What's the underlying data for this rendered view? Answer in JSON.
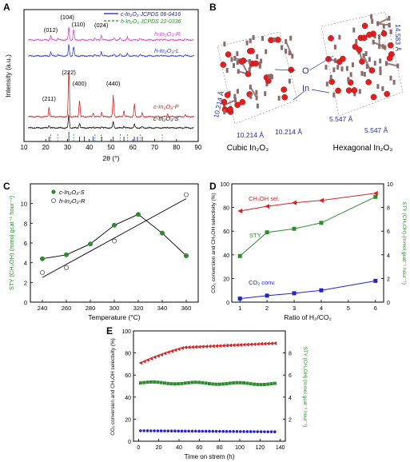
{
  "chart_data": [
    {
      "panel": "A",
      "type": "line",
      "xlabel": "2θ (°)",
      "ylabel": "Intensity (a.u.)",
      "xlim": [
        10,
        90
      ],
      "xticks": [
        "10",
        "20",
        "30",
        "40",
        "50",
        "60",
        "70",
        "80",
        "90"
      ],
      "legend": [
        {
          "name": "c-In2O3 JCPDS 06-0416",
          "color": "#1a1aa6"
        },
        {
          "name": "h-In2O3 JCPDS 22-0336",
          "color": "#2e8b2e"
        }
      ],
      "series": [
        {
          "name": "h-In2O3-R",
          "color": "#e23ad6"
        },
        {
          "name": "h-In2O3-L",
          "color": "#2a3de0"
        },
        {
          "name": "c-In2O3-P",
          "color": "#d42525"
        },
        {
          "name": "c-In2O3-S",
          "color": "#111111"
        }
      ],
      "peaks_h": [
        {
          "label": "(012)",
          "x": 22.3
        },
        {
          "label": "(104)",
          "x": 30.6
        },
        {
          "label": "(110)",
          "x": 32.8
        },
        {
          "label": "(024)",
          "x": 45.5
        }
      ],
      "peaks_c": [
        {
          "label": "(211)",
          "x": 21.5
        },
        {
          "label": "(222)",
          "x": 30.6
        },
        {
          "label": "(400)",
          "x": 35.5
        },
        {
          "label": "(440)",
          "x": 51.0
        }
      ]
    },
    {
      "panel": "B",
      "type": "diagram",
      "cubic_label": "Cubic In2O3",
      "hex_label": "Hexagonal In2O3",
      "cubic_dims": [
        "10.214 Å",
        "10.214 Å",
        "10.214 Å"
      ],
      "hex_dims": [
        "14.583 Å",
        "5.547 Å",
        "5.547 Å"
      ],
      "atom_labels": [
        "O",
        "In"
      ]
    },
    {
      "panel": "C",
      "type": "scatter",
      "xlabel": "Temperature (°C)",
      "ylabel": "STY (CH3OH) (mmol gcat-1 hour-1)",
      "xlim": [
        230,
        370
      ],
      "ylim": [
        0,
        12
      ],
      "xticks": [
        240,
        260,
        280,
        300,
        320,
        340,
        360
      ],
      "yticks": [
        0,
        2,
        4,
        6,
        8,
        10
      ],
      "series": [
        {
          "name": "c-In2O3-S",
          "color": "#2e8b2e",
          "filled": true,
          "x": [
            240,
            260,
            280,
            300,
            320,
            340,
            360
          ],
          "values": [
            4.4,
            4.8,
            5.9,
            7.8,
            8.9,
            7.0,
            4.7
          ]
        },
        {
          "name": "h-In2O3-R",
          "color": "#666666",
          "filled": false,
          "x": [
            240,
            260,
            300,
            360
          ],
          "values": [
            3.0,
            3.5,
            6.2,
            10.9
          ]
        }
      ]
    },
    {
      "panel": "D",
      "type": "line",
      "xlabel": "Ratio of H2/CO2",
      "ylabel_left": "CO2 conversion and CH3OH selectivity (%)",
      "ylabel_right": "STY (CH3OH) (mmol gcat-1 hour-1)",
      "xlim": [
        0.7,
        6.3
      ],
      "ylim_left": [
        0,
        100
      ],
      "ylim_right": [
        0,
        10
      ],
      "xticks": [
        1,
        2,
        3,
        4,
        5,
        6
      ],
      "yticks_left": [
        0,
        20,
        40,
        60,
        80,
        100
      ],
      "yticks_right": [
        0,
        2,
        4,
        6,
        8,
        10
      ],
      "x": [
        1,
        2,
        3,
        4,
        6
      ],
      "series": [
        {
          "name": "CH3OH sel.",
          "color": "#d42525",
          "axis": "left",
          "values": [
            77,
            81,
            84,
            86,
            92
          ]
        },
        {
          "name": "STY",
          "color": "#2e8b2e",
          "axis": "right",
          "values": [
            3.9,
            5.9,
            6.2,
            6.7,
            8.9
          ]
        },
        {
          "name": "CO2 conv.",
          "color": "#2222cc",
          "axis": "left",
          "values": [
            3,
            5.5,
            7.5,
            10,
            18
          ]
        }
      ]
    },
    {
      "panel": "E",
      "type": "scatter",
      "xlabel": "Time on strem (h)",
      "ylabel_left": "CO2 conversion and CH3OH selectivity (%)",
      "ylabel_right": "STY (CH3OH) (mmol gcat-1 hour-1)",
      "xlim": [
        -5,
        145
      ],
      "ylim_left": [
        0,
        100
      ],
      "ylim_right": [
        0,
        10
      ],
      "xticks": [
        0,
        20,
        40,
        60,
        80,
        100,
        120,
        140
      ],
      "yticks_left": [
        0,
        20,
        40,
        60,
        80,
        100
      ],
      "yticks_right": [
        2,
        4,
        6,
        8
      ],
      "series": [
        {
          "name": "CH3OH selectivity",
          "color": "#d42525",
          "axis": "left",
          "trend": [
            [
              2,
              71
            ],
            [
              15,
              76
            ],
            [
              30,
              81
            ],
            [
              45,
              85
            ],
            [
              140,
              89
            ]
          ]
        },
        {
          "name": "STY",
          "color": "#2e8b2e",
          "axis": "right",
          "trend": [
            [
              2,
              5.3
            ],
            [
              140,
              5.2
            ]
          ]
        },
        {
          "name": "CO2 conversion",
          "color": "#2222cc",
          "axis": "left",
          "trend": [
            [
              2,
              9.5
            ],
            [
              140,
              8.5
            ]
          ]
        }
      ]
    }
  ],
  "labels": {
    "A": "A",
    "B": "B",
    "C": "C",
    "D": "D",
    "E": "E",
    "a_xlabel": "2θ (°)",
    "a_ylabel": "Intensity (a.u.)",
    "a_leg1": "c-In₂O₃ JCPDS 06-0416",
    "a_leg2": "h-In₂O₃ JCPDS 22-0336",
    "a_s1": "h-In₂O₃-R",
    "a_s2": "h-In₂O₃-L",
    "a_s3": "c-In₂O₃-P",
    "a_s4": "c-In₂O₃-S",
    "b_cubic": "Cubic In₂O₃",
    "b_hex": "Hexagonal In₂O₃",
    "b_c1": "10.214 Å",
    "b_c2": "10.214 Å",
    "b_c3": "10.214 Å",
    "b_h1": "14.583 Å",
    "b_h2": "5.547 Å",
    "b_h3": "5.547 Å",
    "b_o": "O",
    "b_in": "In",
    "c_xlabel": "Temperature (°C)",
    "c_ylabel": "STY (CH₃OH) (mmol gcat⁻¹ hour⁻¹)",
    "c_leg1": "c-In₂O₃-S",
    "c_leg2": "h-In₂O₃-R",
    "d_xlabel": "Ratio of H₂/CO₂",
    "d_ylabel_left": "CO₂ conversion and CH₃OH selectivity (%)",
    "d_ylabel_right": "STY (CH₃OH) (mmol gcat⁻¹ hour⁻¹)",
    "d_sel": "CH₃OH sel.",
    "d_sty": "STY",
    "d_conv": "CO₂ conv.",
    "e_xlabel": "Time on strem (h)",
    "e_ylabel_left": "CO₂ conversion and CH₃OH selectivity (%)",
    "e_ylabel_right": "STY (CH₃OH) (mmol gcat⁻¹ hour⁻¹)"
  }
}
